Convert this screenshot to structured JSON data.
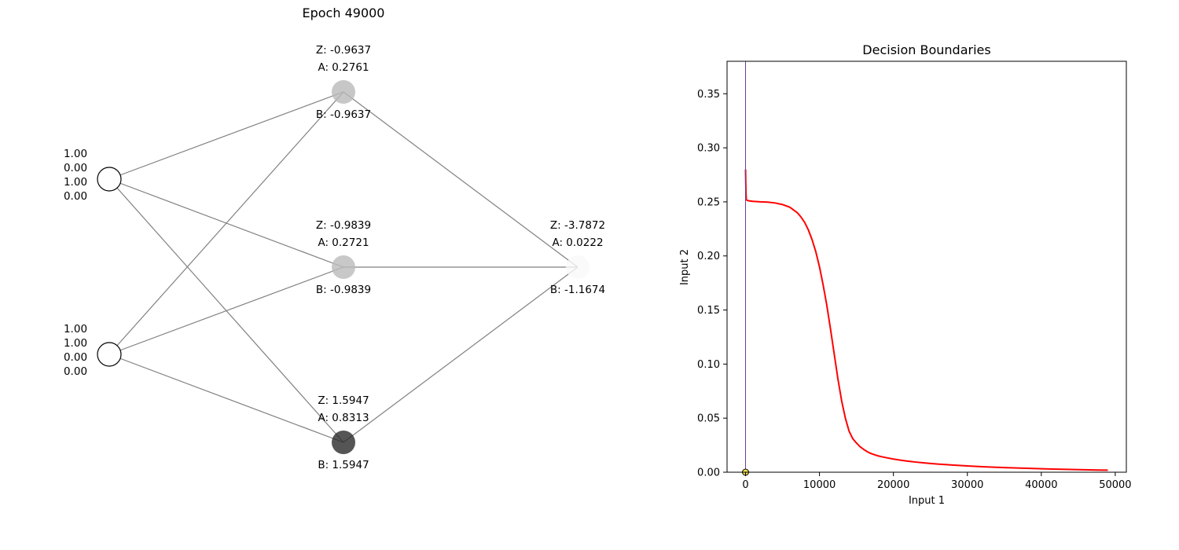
{
  "network": {
    "title": "Epoch 49000",
    "inputs": [
      {
        "values": [
          "1.00",
          "0.00",
          "1.00",
          "0.00"
        ]
      },
      {
        "values": [
          "1.00",
          "1.00",
          "0.00",
          "0.00"
        ]
      }
    ],
    "hidden": [
      {
        "z": "Z: -0.9637",
        "a": "A: 0.2761",
        "b": "B: -0.9637",
        "activation": 0.2761
      },
      {
        "z": "Z: -0.9839",
        "a": "A: 0.2721",
        "b": "B: -0.9839",
        "activation": 0.2721
      },
      {
        "z": "Z: 1.5947",
        "a": "A: 0.8313",
        "b": "B: 1.5947",
        "activation": 0.8313
      }
    ],
    "output": {
      "z": "Z: -3.7872",
      "a": "A: 0.0222",
      "b": "B: -1.1674",
      "activation": 0.0222
    }
  },
  "chart_data": {
    "type": "line",
    "title": "Decision Boundaries",
    "xlabel": "Input 1",
    "ylabel": "Input 2",
    "xlim": [
      -2500,
      51500
    ],
    "ylim": [
      0,
      0.38
    ],
    "xticks": [
      0,
      10000,
      20000,
      30000,
      40000,
      50000
    ],
    "xtick_labels": [
      "0",
      "10000",
      "20000",
      "30000",
      "40000",
      "50000"
    ],
    "yticks": [
      0,
      0.05,
      0.1,
      0.15,
      0.2,
      0.25,
      0.3,
      0.35
    ],
    "ytick_labels": [
      "0.00",
      "0.05",
      "0.10",
      "0.15",
      "0.20",
      "0.25",
      "0.30",
      "0.35"
    ],
    "grid": false,
    "series": [
      {
        "color": "#ff0000",
        "x": [
          0,
          30,
          60,
          100,
          200,
          400,
          1000,
          2000,
          3000,
          4000,
          5000,
          6000,
          7000,
          7500,
          8000,
          8500,
          9000,
          9500,
          10000,
          10500,
          11000,
          11500,
          12000,
          12500,
          13000,
          13500,
          14000,
          14500,
          15000,
          15500,
          16000,
          16500,
          17000,
          17500,
          18000,
          18500,
          19000,
          20000,
          21000,
          22000,
          23000,
          24000,
          25000,
          26000,
          28000,
          30000,
          32000,
          35000,
          38000,
          41000,
          44000,
          47000,
          49000
        ],
        "y": [
          0.28,
          0.268,
          0.258,
          0.252,
          0.2515,
          0.251,
          0.2505,
          0.25,
          0.2498,
          0.249,
          0.2475,
          0.245,
          0.24,
          0.236,
          0.231,
          0.224,
          0.215,
          0.204,
          0.19,
          0.173,
          0.154,
          0.132,
          0.109,
          0.086,
          0.066,
          0.05,
          0.038,
          0.031,
          0.027,
          0.0235,
          0.021,
          0.0188,
          0.0172,
          0.016,
          0.015,
          0.0142,
          0.0135,
          0.0122,
          0.0111,
          0.0102,
          0.0094,
          0.0087,
          0.0081,
          0.0075,
          0.0066,
          0.0058,
          0.0051,
          0.0043,
          0.0036,
          0.003,
          0.0025,
          0.0021,
          0.0019
        ]
      },
      {
        "color": "#6a3d9a",
        "x": [
          0,
          0
        ],
        "y": [
          0,
          0.38
        ]
      }
    ],
    "points": [
      {
        "x": 0,
        "y": 0,
        "color": "#f2e14b"
      }
    ]
  }
}
